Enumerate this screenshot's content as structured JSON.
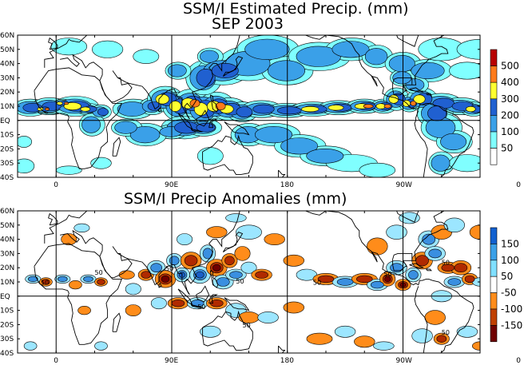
{
  "title_line1": "SSM/I Estimated Precip. (mm)",
  "title_line2": "SEP 2003",
  "title_anom": "SSM/I Precip Anomalies (mm)",
  "lat_ticks": [
    "60N",
    "50N",
    "40N",
    "30N",
    "20N",
    "10N",
    "EQ",
    "10S",
    "20S",
    "30S",
    "40S"
  ],
  "lon_ticks": [
    "0",
    "90E",
    "180",
    "90W",
    "0"
  ],
  "legend_top": {
    "labels": [
      "500",
      "400",
      "300",
      "200",
      "100",
      "50"
    ],
    "colors": [
      "#b80000",
      "#ff7a1a",
      "#ffff30",
      "#2060d0",
      "#3aa0e8",
      "#80ffff",
      "#ffffff"
    ]
  },
  "legend_bottom": {
    "labels": [
      "150",
      "100",
      "50",
      "-50",
      "-100",
      "-150"
    ],
    "colors": [
      "#1060d0",
      "#3aa0e8",
      "#80e0ff",
      "#ffffff",
      "#ff8c1a",
      "#c04000",
      "#700000"
    ]
  },
  "anom_contour_label": "50",
  "colors": {
    "precip_light": "#80ffff",
    "precip_mid": "#3aa0e8",
    "precip_dark": "#2060d0",
    "precip_yellow": "#ffff30",
    "precip_orange": "#ff7a1a",
    "precip_red": "#b80000",
    "anom_pos": "#3a8fe0",
    "anom_pos_light": "#9ce6ff",
    "anom_neg": "#ff8c1a",
    "anom_neg_dark": "#b02a00",
    "anom_neg_darker": "#700000"
  }
}
